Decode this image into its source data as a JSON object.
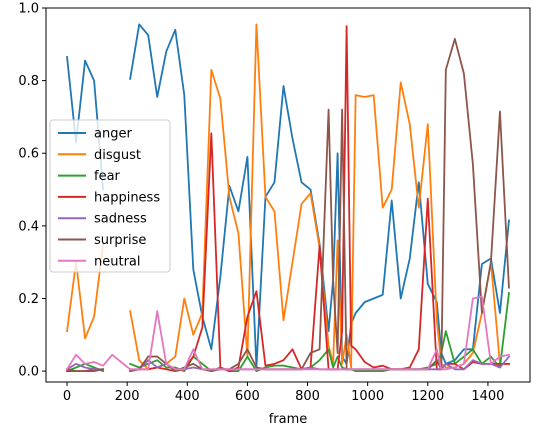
{
  "chart_data": {
    "type": "line",
    "title": "",
    "xlabel": "frame",
    "ylabel": "",
    "xlim": [
      -70,
      1540
    ],
    "ylim": [
      -0.03,
      1.0
    ],
    "xticks": [
      0,
      200,
      400,
      600,
      800,
      1000,
      1200,
      1400
    ],
    "yticks": [
      0.0,
      0.2,
      0.4,
      0.6,
      0.8,
      1.0
    ],
    "xtick_labels": [
      "0",
      "200",
      "400",
      "600",
      "800",
      "1000",
      "1200",
      "1400"
    ],
    "ytick_labels": [
      "0.0",
      "0.2",
      "0.4",
      "0.6",
      "0.8",
      "1.0"
    ],
    "grid": false,
    "legend_position": "center-left",
    "x": [
      0,
      30,
      60,
      90,
      120,
      150,
      210,
      240,
      270,
      300,
      330,
      360,
      390,
      420,
      450,
      480,
      510,
      540,
      570,
      600,
      630,
      660,
      690,
      720,
      750,
      780,
      810,
      840,
      870,
      885,
      900,
      915,
      930,
      945,
      960,
      990,
      1020,
      1050,
      1080,
      1110,
      1140,
      1170,
      1200,
      1230,
      1245,
      1260,
      1290,
      1320,
      1350,
      1380,
      1410,
      1440,
      1470
    ],
    "series": [
      {
        "name": "anger",
        "color": "#1f77b4",
        "values": [
          0.865,
          0.63,
          0.855,
          0.8,
          0.5,
          null,
          0.805,
          0.955,
          0.925,
          0.755,
          0.88,
          0.94,
          0.76,
          0.28,
          0.15,
          0.06,
          0.26,
          0.51,
          0.44,
          0.59,
          0.01,
          0.48,
          0.52,
          0.785,
          0.64,
          0.52,
          0.5,
          0.35,
          0.11,
          0.25,
          0.6,
          0.04,
          0.02,
          0.13,
          0.16,
          0.19,
          0.2,
          0.21,
          0.47,
          0.2,
          0.31,
          0.52,
          0.24,
          0.19,
          0.05,
          0.02,
          0.03,
          0.06,
          0.06,
          0.295,
          0.31,
          0.16,
          0.415
        ]
      },
      {
        "name": "disgust",
        "color": "#ff7f0e",
        "values": [
          0.11,
          0.3,
          0.09,
          0.15,
          0.35,
          null,
          0.165,
          0.03,
          0.005,
          0.01,
          0.02,
          0.04,
          0.2,
          0.1,
          0.16,
          0.83,
          0.75,
          0.48,
          0.38,
          0.04,
          0.955,
          0.48,
          0.44,
          0.14,
          0.3,
          0.46,
          0.49,
          0.34,
          0.07,
          0.02,
          0.36,
          0.02,
          0.1,
          0.01,
          0.76,
          0.755,
          0.76,
          0.45,
          0.5,
          0.795,
          0.68,
          0.45,
          0.68,
          0.14,
          0.02,
          0.01,
          0.01,
          0.02,
          0.05,
          0.16,
          0.3,
          0.02,
          0.02
        ]
      },
      {
        "name": "fear",
        "color": "#2ca02c",
        "values": [
          0.0,
          0.01,
          0.02,
          0.01,
          0.0,
          null,
          0.02,
          0.01,
          0.02,
          0.03,
          0.01,
          0.01,
          0.0,
          0.04,
          0.02,
          0.0,
          0.01,
          0.0,
          0.0,
          0.04,
          0.0,
          0.01,
          0.015,
          0.015,
          0.01,
          0.005,
          0.01,
          0.03,
          0.06,
          0.01,
          0.04,
          0.01,
          0.005,
          0.005,
          0.0,
          0.0,
          0.0,
          0.0,
          0.005,
          0.005,
          0.005,
          0.005,
          0.01,
          0.02,
          0.05,
          0.11,
          0.02,
          0.04,
          0.06,
          0.02,
          0.04,
          0.01,
          0.215
        ]
      },
      {
        "name": "happiness",
        "color": "#d62728",
        "values": [
          0.0,
          0.0,
          0.0,
          0.005,
          0.005,
          null,
          0.0,
          0.005,
          0.005,
          0.01,
          0.005,
          0.0,
          0.005,
          0.04,
          0.12,
          0.655,
          0.01,
          0.0,
          0.01,
          0.15,
          0.22,
          0.015,
          0.02,
          0.03,
          0.06,
          0.005,
          0.01,
          0.345,
          0.005,
          0.005,
          0.005,
          0.11,
          0.95,
          0.07,
          0.06,
          0.025,
          0.01,
          0.015,
          0.005,
          0.005,
          0.01,
          0.06,
          0.475,
          0.005,
          0.005,
          0.02,
          0.02,
          0.005,
          0.025,
          0.02,
          0.02,
          0.02,
          0.02
        ]
      },
      {
        "name": "sadness",
        "color": "#9467bd",
        "values": [
          0.005,
          0.02,
          0.01,
          0.005,
          0.005,
          null,
          0.005,
          0.005,
          0.03,
          0.01,
          0.02,
          0.005,
          0.005,
          0.01,
          0.005,
          0.005,
          0.005,
          0.005,
          0.005,
          0.005,
          0.005,
          0.005,
          0.005,
          0.005,
          0.005,
          0.005,
          0.01,
          0.005,
          0.005,
          0.005,
          0.005,
          0.005,
          0.005,
          0.005,
          0.005,
          0.005,
          0.005,
          0.005,
          0.005,
          0.005,
          0.005,
          0.005,
          0.005,
          0.005,
          0.005,
          0.02,
          0.005,
          0.005,
          0.03,
          0.02,
          0.02,
          0.01,
          0.04
        ]
      },
      {
        "name": "surprise",
        "color": "#8c564b",
        "values": [
          0.005,
          0.0,
          0.0,
          0.0,
          0.005,
          null,
          0.0,
          0.005,
          0.04,
          0.04,
          0.02,
          0.0,
          0.01,
          0.02,
          0.005,
          0.0,
          0.005,
          0.005,
          0.02,
          0.06,
          0.01,
          0.005,
          0.005,
          0.005,
          0.005,
          0.005,
          0.05,
          0.06,
          0.72,
          0.25,
          0.05,
          0.72,
          0.005,
          0.005,
          0.005,
          0.005,
          0.005,
          0.005,
          0.005,
          0.005,
          0.005,
          0.005,
          0.005,
          0.03,
          0.005,
          0.83,
          0.915,
          0.82,
          0.57,
          0.16,
          0.3,
          0.715,
          0.23
        ]
      },
      {
        "name": "neutral",
        "color": "#e377c2",
        "values": [
          0.005,
          0.045,
          0.02,
          0.025,
          0.015,
          0.045,
          0.005,
          0.005,
          0.005,
          0.165,
          0.02,
          0.005,
          0.005,
          0.06,
          0.005,
          0.005,
          0.005,
          0.005,
          0.005,
          0.005,
          0.005,
          0.005,
          0.005,
          0.005,
          0.005,
          0.005,
          0.005,
          0.005,
          0.005,
          0.005,
          0.005,
          0.005,
          0.005,
          0.005,
          0.005,
          0.005,
          0.005,
          0.005,
          0.005,
          0.005,
          0.005,
          0.005,
          0.005,
          0.06,
          0.005,
          0.005,
          0.01,
          0.02,
          0.2,
          0.205,
          0.02,
          0.04,
          0.045
        ]
      }
    ]
  }
}
